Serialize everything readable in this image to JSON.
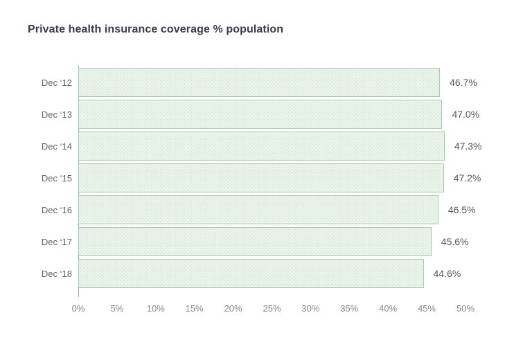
{
  "chart_data": {
    "type": "bar",
    "orientation": "horizontal",
    "title": "Private health insurance coverage % population",
    "categories": [
      "Dec ‘12",
      "Dec ‘13",
      "Dec ‘14",
      "Dec ‘15",
      "Dec ‘16",
      "Dec ‘17",
      "Dec ‘18"
    ],
    "values": [
      46.7,
      47.0,
      47.3,
      47.2,
      46.5,
      45.6,
      44.6
    ],
    "value_labels": [
      "46.7%",
      "47.0%",
      "47.3%",
      "47.2%",
      "46.5%",
      "45.6%",
      "44.6%"
    ],
    "xlabel": "",
    "ylabel": "",
    "xlim": [
      0,
      50
    ],
    "x_ticks": [
      "0%",
      "5%",
      "10%",
      "15%",
      "20%",
      "25%",
      "30%",
      "35%",
      "40%",
      "45%",
      "50%"
    ],
    "x_tick_values": [
      0,
      5,
      10,
      15,
      20,
      25,
      30,
      35,
      40,
      45,
      50
    ],
    "grid": false,
    "legend": false,
    "colors": {
      "bar_fill": "#ecf4ec",
      "bar_border": "#a6cdab",
      "bar_dot_pattern": "#d4e7d7",
      "title_text": "#373d4f",
      "category_label_text": "#606468",
      "value_label_text": "#54575b",
      "tick_label_text": "#85888c",
      "axis_line": "#9aa0a6",
      "background": "#ffffff"
    }
  }
}
